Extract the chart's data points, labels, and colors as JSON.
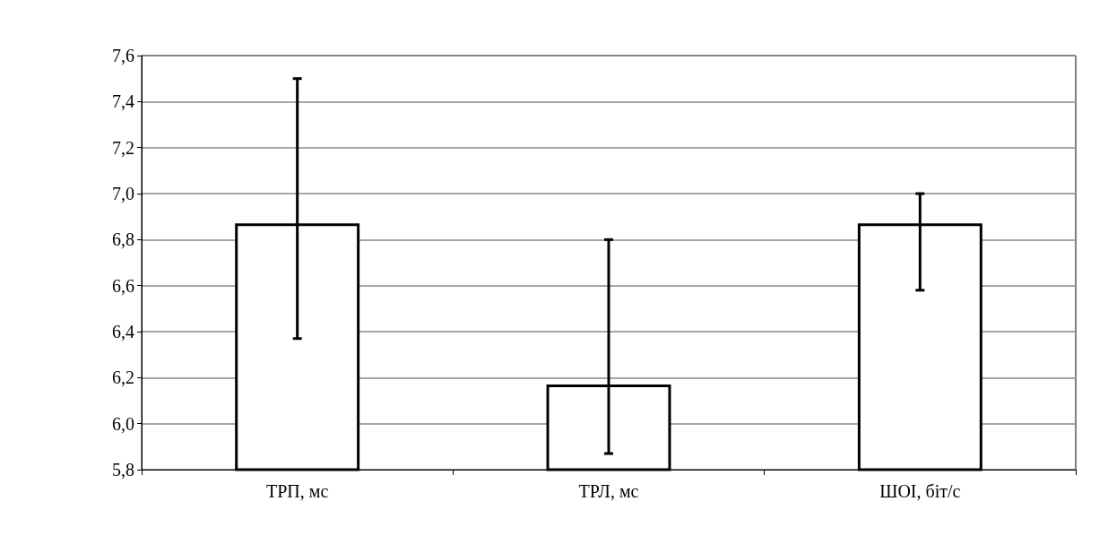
{
  "chart_data": {
    "type": "bar",
    "categories": [
      "ТРП, мс",
      "ТРЛ, мс",
      "ШОІ, біт/с"
    ],
    "values": [
      6.87,
      6.17,
      6.87
    ],
    "color": "#ffffff",
    "errors": [
      [
        6.37,
        7.5
      ],
      [
        5.87,
        6.8
      ],
      [
        6.58,
        7.0
      ]
    ],
    "ylim": [
      5.8,
      7.6
    ],
    "yticks": [
      {
        "value": 5.8,
        "label": "5,8"
      },
      {
        "value": 6.0,
        "label": "6,0"
      },
      {
        "value": 6.2,
        "label": "6,2"
      },
      {
        "value": 6.4,
        "label": "6,4"
      },
      {
        "value": 6.6,
        "label": "6,6"
      },
      {
        "value": 6.8,
        "label": "6,8"
      },
      {
        "value": 7.0,
        "label": "7,0"
      },
      {
        "value": 7.2,
        "label": "7,2"
      },
      {
        "value": 7.4,
        "label": "7,4"
      },
      {
        "value": 7.6,
        "label": "7,6"
      }
    ],
    "grid": "y"
  }
}
